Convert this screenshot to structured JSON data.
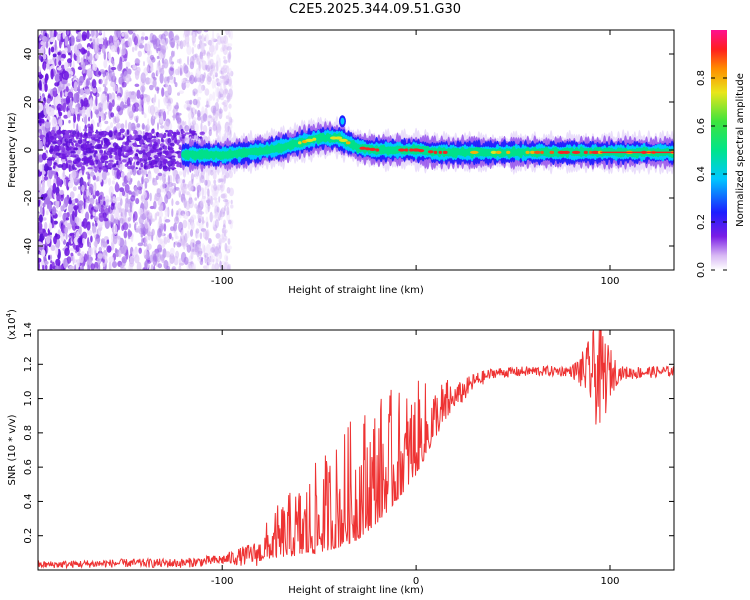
{
  "title": "C2E5.2025.344.09.51.G30",
  "chart_data": [
    {
      "type": "heatmap",
      "name": "spectrogram",
      "xlabel": "Height of straight line (km)",
      "ylabel": "Frequency (Hz)",
      "xlim": [
        -195,
        133
      ],
      "ylim": [
        -50,
        50
      ],
      "xticks": [
        -100,
        0,
        100
      ],
      "xtick_labels": [
        "-100",
        "",
        "100"
      ],
      "yticks": [
        -40,
        -20,
        0,
        20,
        40
      ],
      "ytick_labels": [
        "-40",
        "-20",
        "0",
        "20",
        "40"
      ],
      "noise_region": {
        "x": [
          -195,
          -105
        ],
        "y": [
          -50,
          50
        ]
      },
      "ridge": {
        "x": [
          -120,
          -100,
          -85,
          -70,
          -60,
          -50,
          -40,
          -35,
          -30,
          -20,
          -10,
          0,
          10,
          30,
          60,
          90,
          110,
          133
        ],
        "y": [
          -2,
          -2,
          -1,
          1,
          3,
          5,
          5,
          3,
          1,
          0,
          0,
          0,
          -1,
          -1,
          -1,
          -1,
          -1,
          -1
        ]
      },
      "blob": {
        "x": -38,
        "y": 12
      },
      "colorbar": {
        "label": "Normalized spectral amplitude",
        "range": [
          0.0,
          1.0
        ],
        "ticks": [
          0.0,
          0.2,
          0.4,
          0.6,
          0.8
        ],
        "tick_labels": [
          "0.0",
          "0.2",
          "0.4",
          "0.6",
          "0.8"
        ]
      }
    },
    {
      "type": "line",
      "name": "snr",
      "xlabel": "Height of straight line (km)",
      "ylabel": "SNR (10 * v/v)",
      "scale_note": "(x10",
      "scale_exp": "4",
      "xlim": [
        -195,
        133
      ],
      "ylim": [
        0.0,
        1.4
      ],
      "xticks": [
        -100,
        0,
        100
      ],
      "xtick_labels": [
        "-100",
        "0",
        "100"
      ],
      "yticks": [
        0.2,
        0.4,
        0.6,
        0.8,
        1.0,
        1.2,
        1.4
      ],
      "ytick_labels": [
        "0.2",
        "0.4",
        "0.6",
        "0.8",
        "1.0",
        "1.2",
        "1.4"
      ],
      "color": "#ee3333",
      "envelope": {
        "x": [
          -195,
          -150,
          -120,
          -100,
          -80,
          -70,
          -55,
          -40,
          -30,
          -20,
          -10,
          0,
          10,
          20,
          30,
          40,
          60,
          80,
          90,
          95,
          100,
          110,
          133
        ],
        "y": [
          0.03,
          0.04,
          0.04,
          0.06,
          0.1,
          0.15,
          0.2,
          0.28,
          0.35,
          0.45,
          0.55,
          0.68,
          0.85,
          1.0,
          1.1,
          1.15,
          1.16,
          1.16,
          1.16,
          1.12,
          1.15,
          1.15,
          1.16
        ]
      },
      "noise": {
        "x": [
          -195,
          -100,
          -80,
          -70,
          -60,
          -50,
          -40,
          -30,
          -20,
          -10,
          0,
          10,
          20,
          30,
          40,
          80,
          88,
          92,
          96,
          100,
          105,
          133
        ],
        "amp": [
          0.02,
          0.03,
          0.08,
          0.15,
          0.2,
          0.25,
          0.3,
          0.35,
          0.35,
          0.3,
          0.25,
          0.15,
          0.08,
          0.05,
          0.03,
          0.03,
          0.15,
          0.3,
          0.3,
          0.15,
          0.04,
          0.03
        ]
      }
    }
  ]
}
